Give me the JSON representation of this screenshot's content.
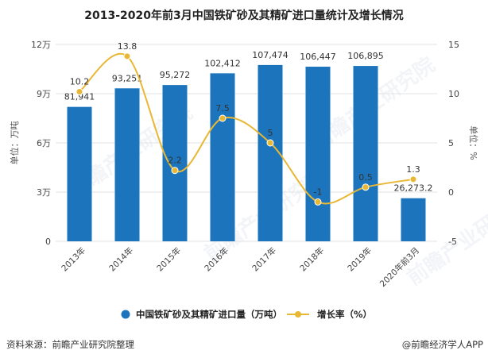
{
  "chart_data": {
    "type": "bar",
    "title": "2013-2020年前3月中国铁矿砂及其精矿进口量统计及增长情况",
    "categories": [
      "2013年",
      "2014年",
      "2015年",
      "2016年",
      "2017年",
      "2018年",
      "2019年",
      "2020年前3月"
    ],
    "series": [
      {
        "name": "中国铁矿砂及其精矿进口量（万吨）",
        "type": "bar",
        "axis": "left",
        "color": "#1c75bc",
        "values": [
          81941,
          93251,
          95272,
          102412,
          107474,
          106447,
          106895,
          26273.2
        ],
        "labels": [
          "81,941",
          "93,251",
          "95,272",
          "102,412",
          "107,474",
          "106,447",
          "106,895",
          "26,273.2"
        ]
      },
      {
        "name": "增长率（%）",
        "type": "line",
        "axis": "right",
        "color": "#e8b733",
        "values": [
          10.2,
          13.8,
          2.2,
          7.5,
          5,
          -1,
          0.5,
          1.3
        ],
        "labels": [
          "10.2",
          "13.8",
          "2.2",
          "7.5",
          "5",
          "-1",
          "0.5",
          "1.3"
        ]
      }
    ],
    "left_axis": {
      "label": "单位：万吨",
      "range": [
        0,
        120000
      ],
      "ticks": [
        0,
        30000,
        60000,
        90000,
        120000
      ],
      "tick_labels": [
        "0",
        "3万",
        "6万",
        "9万",
        "12万"
      ]
    },
    "right_axis": {
      "label": "单位：%",
      "range": [
        -5,
        15
      ],
      "ticks": [
        -5,
        0,
        5,
        10,
        15
      ],
      "tick_labels": [
        "-5",
        "0",
        "5",
        "10",
        "15"
      ]
    },
    "legend_position": "bottom",
    "grid": true
  },
  "footer": {
    "source": "资料来源：前瞻产业研究院整理",
    "brand": "@前瞻经济学人APP"
  },
  "watermark": {
    "text": "前瞻产业研究院"
  }
}
